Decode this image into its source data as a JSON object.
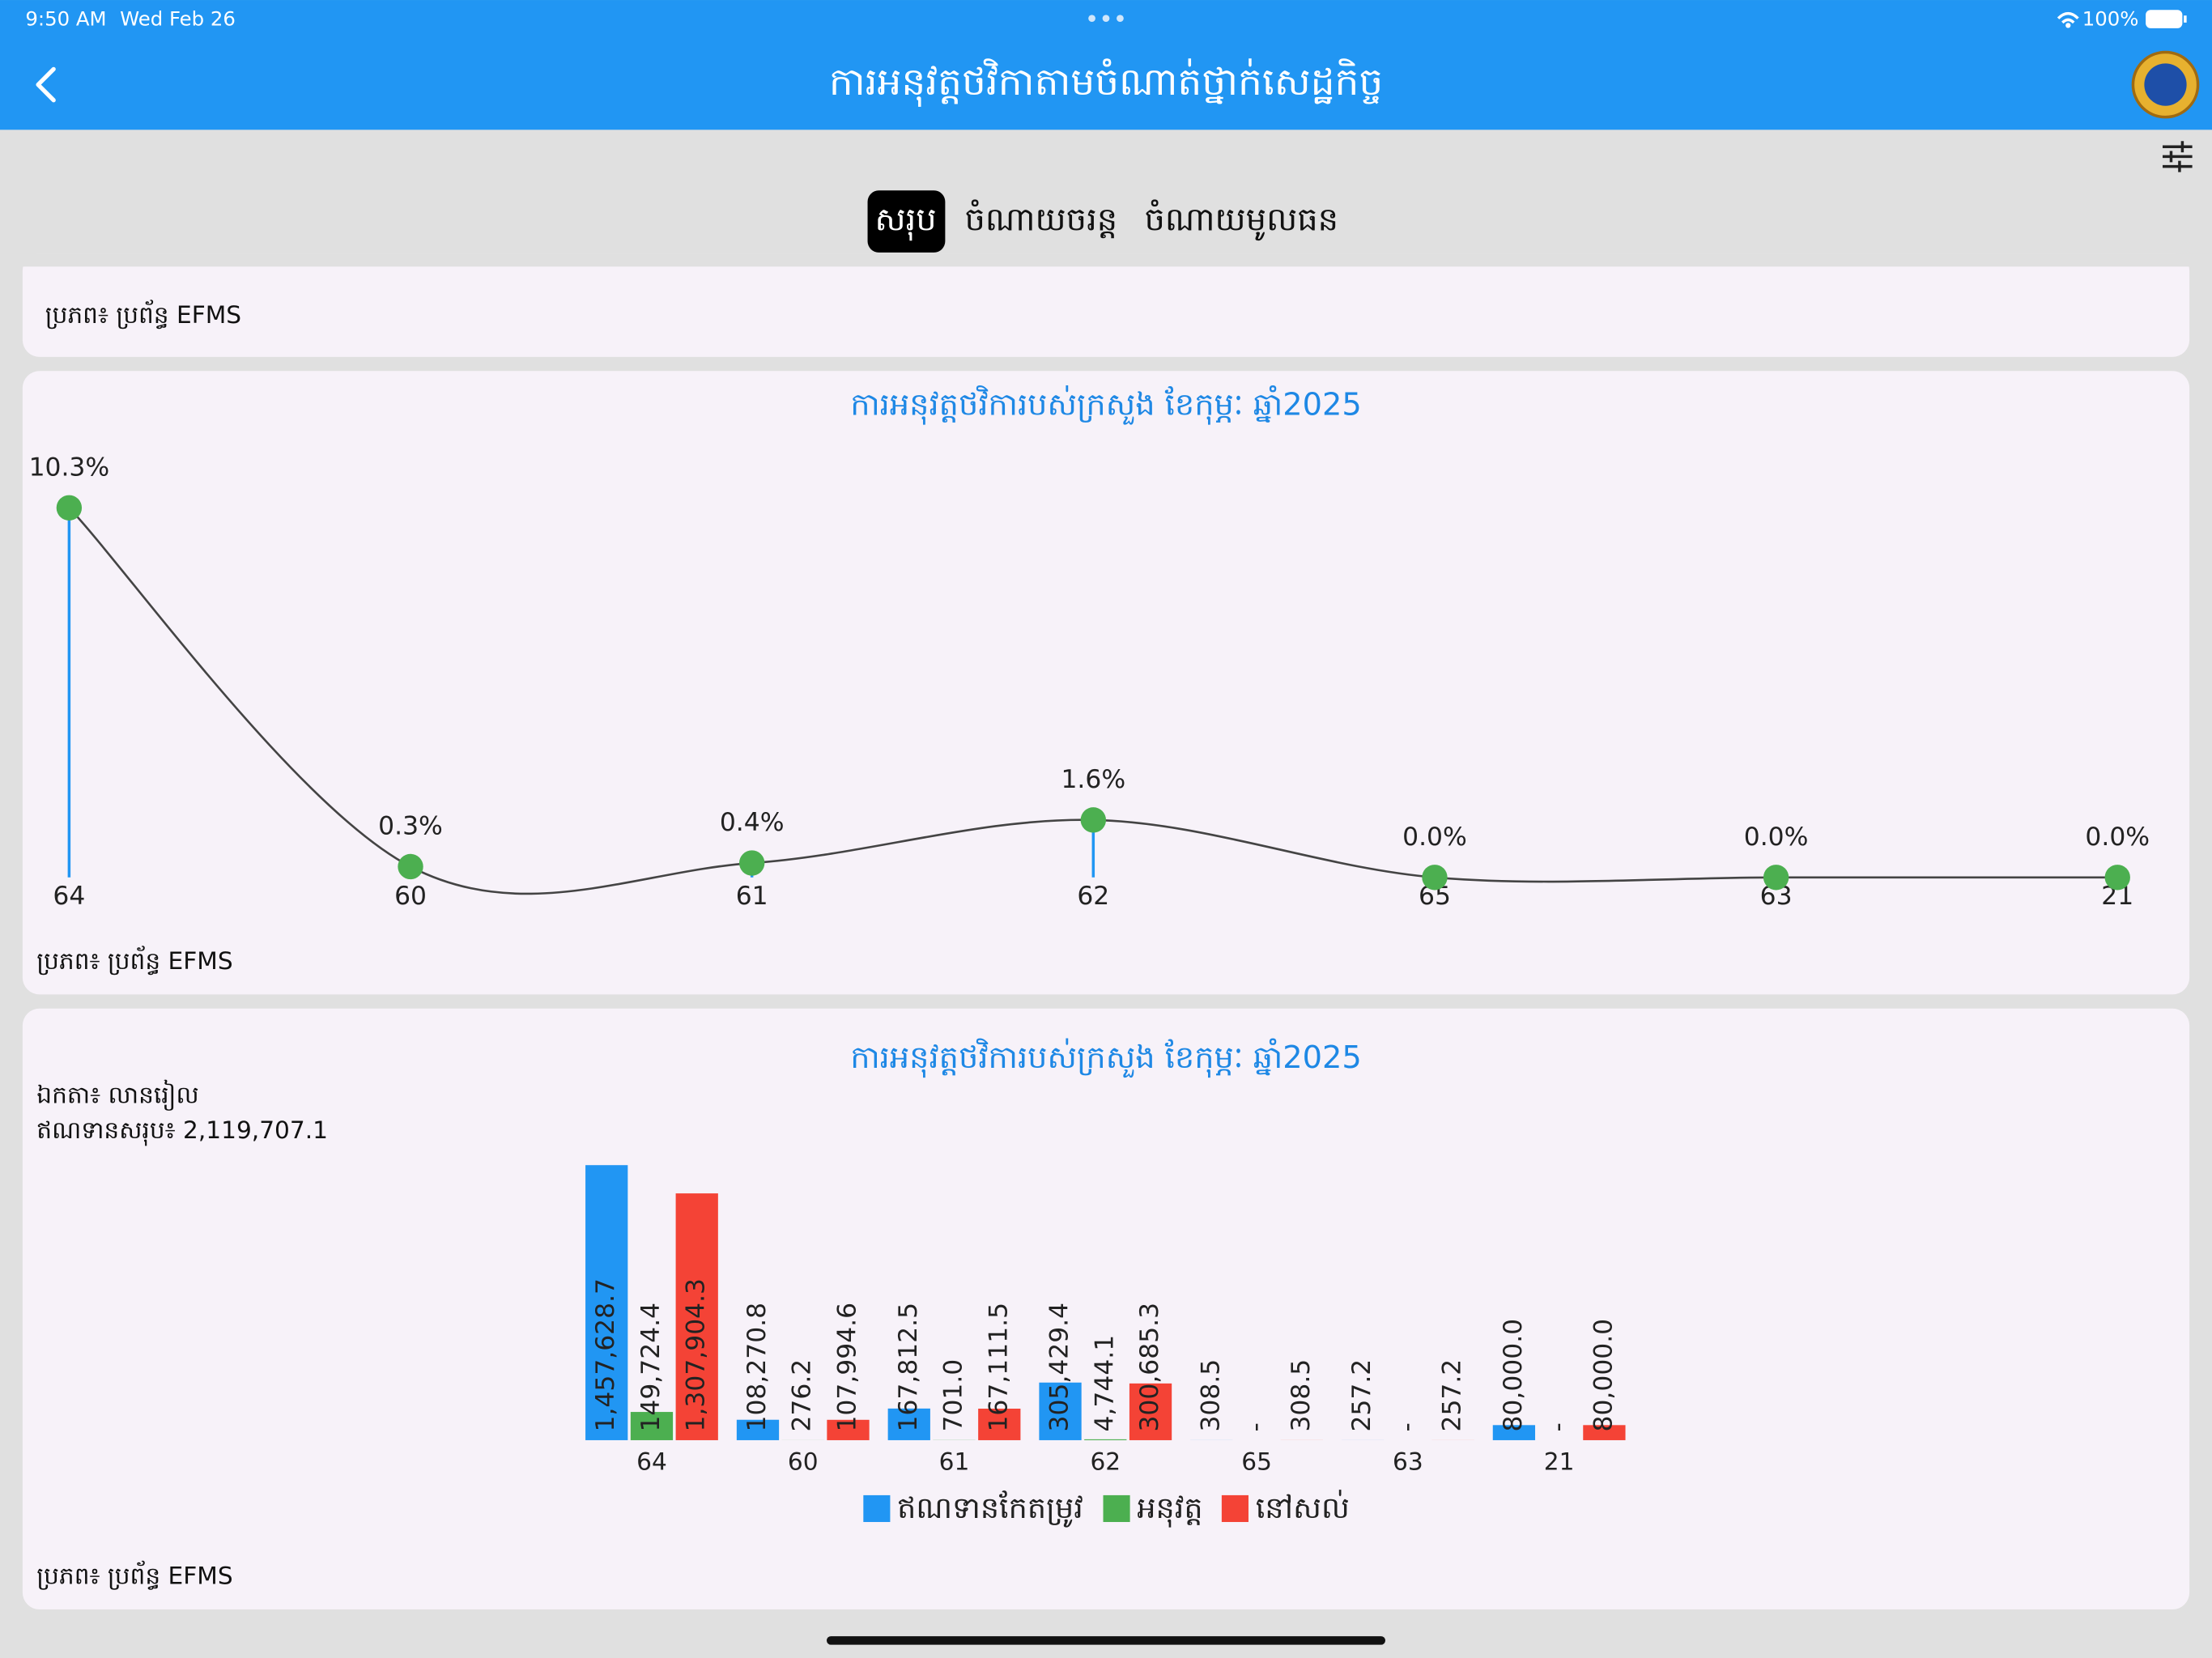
{
  "status_bar": {
    "time": "9:50 AM",
    "date": "Wed Feb 26",
    "battery": "100%"
  },
  "header": {
    "title": "ការអនុវត្តថវិកាតាមចំណាត់ថ្នាក់សេដ្ឋកិច្ច"
  },
  "tabs": [
    "សរុប",
    "ចំណាយចរន្ត",
    "ចំណាយមូលធន"
  ],
  "summary_card": {
    "source": "ប្រភព៖ ប្រព័ន្ធ EFMS"
  },
  "chart_data": [
    {
      "type": "line",
      "title": "ការអនុវត្តថវិការបស់ក្រសួង ខែកុម្ភៈ ឆ្នាំ2025",
      "categories": [
        "64",
        "60",
        "61",
        "62",
        "65",
        "63",
        "21"
      ],
      "values": [
        10.3,
        0.3,
        0.4,
        1.6,
        0.0,
        0.0,
        0.0
      ],
      "value_labels": [
        "10.3%",
        "0.3%",
        "0.4%",
        "1.6%",
        "0.0%",
        "0.0%",
        "0.0%"
      ],
      "color": "#4caf50",
      "line_color": "#444444",
      "drop_color": "#2196f3",
      "source": "ប្រភព៖ ប្រព័ន្ធ EFMS"
    },
    {
      "type": "bar",
      "title": "ការអនុវត្តថវិការបស់ក្រសួង ខែកុម្ភៈ ឆ្នាំ2025",
      "unit": "ឯកតា៖ លានរៀល",
      "total": "ឥណទានសរុប៖ 2,119,707.1",
      "categories": [
        "64",
        "60",
        "61",
        "62",
        "65",
        "63",
        "21"
      ],
      "series": [
        {
          "name": "ឥណទានកែតម្រូវ",
          "color": "#2196f3",
          "values": [
            1457628.7,
            108270.8,
            167812.5,
            305429.4,
            308.5,
            257.2,
            80000.0
          ],
          "value_labels": [
            "1,457,628.7",
            "108,270.8",
            "167,812.5",
            "305,429.4",
            "308.5",
            "257.2",
            "80,000.0"
          ]
        },
        {
          "name": "អនុវត្ត",
          "color": "#4caf50",
          "values": [
            149724.4,
            276.2,
            701.0,
            4744.1,
            0,
            0,
            0
          ],
          "value_labels": [
            "149,724.4",
            "276.2",
            "701.0",
            "4,744.1",
            "-",
            "-",
            "-"
          ]
        },
        {
          "name": "នៅសល់",
          "color": "#f44336",
          "values": [
            1307904.3,
            107994.6,
            167111.5,
            300685.3,
            308.5,
            257.2,
            80000.0
          ],
          "value_labels": [
            "1,307,904.3",
            "107,994.6",
            "167,111.5",
            "300,685.3",
            "308.5",
            "257.2",
            "80,000.0"
          ]
        }
      ],
      "source": "ប្រភព៖ ប្រព័ន្ធ EFMS"
    }
  ]
}
